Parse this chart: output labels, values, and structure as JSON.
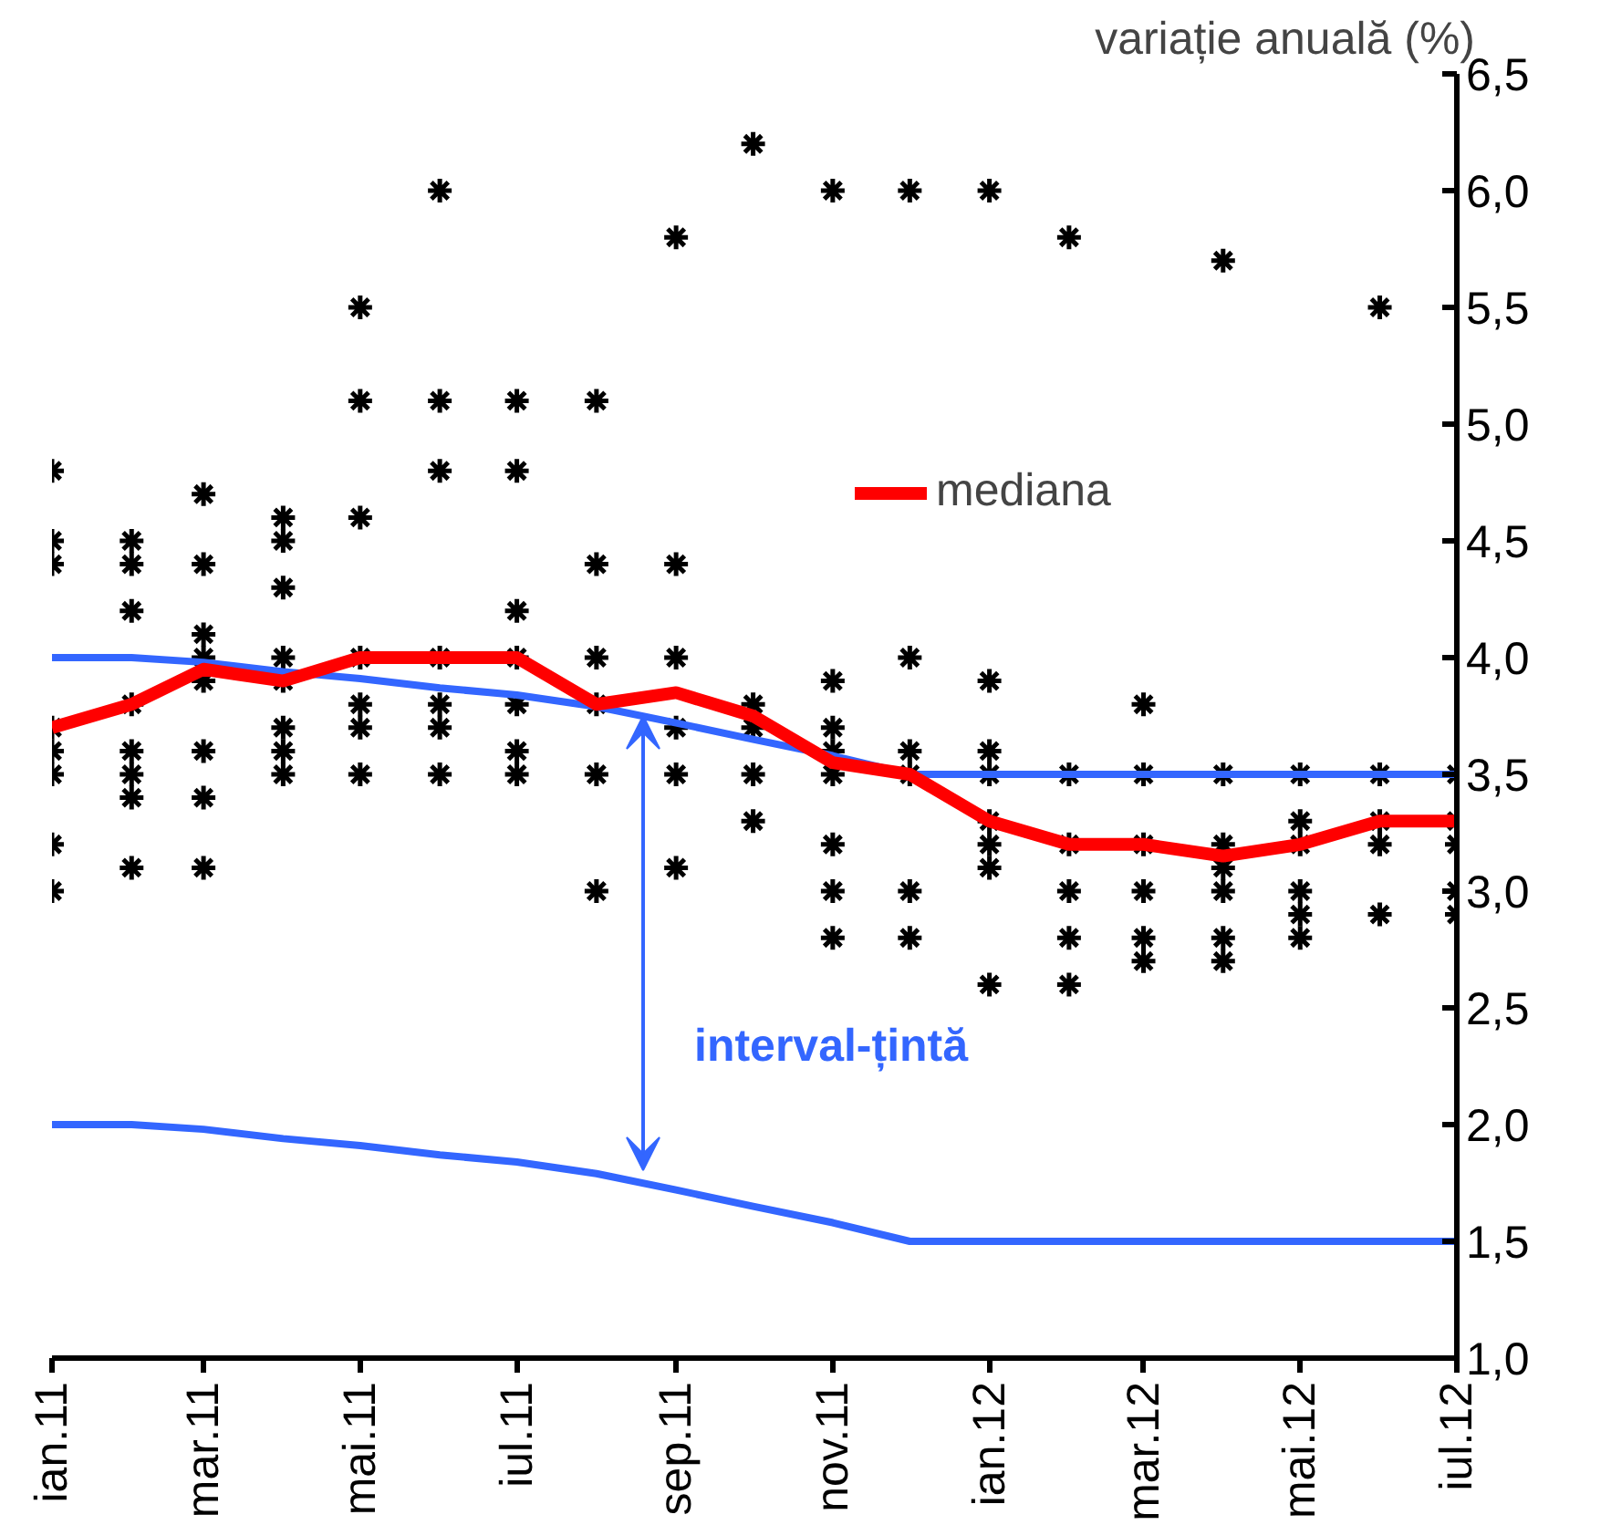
{
  "chart_data": {
    "type": "line",
    "ylabel": "variație anuală (%)",
    "x": [
      "2011-01",
      "2011-02",
      "2011-03",
      "2011-04",
      "2011-05",
      "2011-06",
      "2011-07",
      "2011-08",
      "2011-09",
      "2011-10",
      "2011-11",
      "2011-12",
      "2012-01",
      "2012-02",
      "2012-03",
      "2012-04",
      "2012-05",
      "2012-06",
      "2012-07"
    ],
    "xlim": [
      "2011-01",
      "2012-07"
    ],
    "xticks": [
      {
        "value": "2011-01",
        "label": "ian.11"
      },
      {
        "value": "2011-03",
        "label": "mar.11"
      },
      {
        "value": "2011-05",
        "label": "mai.11"
      },
      {
        "value": "2011-07",
        "label": "iul.11"
      },
      {
        "value": "2011-09",
        "label": "sep.11"
      },
      {
        "value": "2011-11",
        "label": "nov.11"
      },
      {
        "value": "2012-01",
        "label": "ian.12"
      },
      {
        "value": "2012-03",
        "label": "mar.12"
      },
      {
        "value": "2012-05",
        "label": "mai.12"
      },
      {
        "value": "2012-07",
        "label": "iul.12"
      }
    ],
    "ylim": [
      1.0,
      6.5
    ],
    "yticks": [
      {
        "value": 1.0,
        "label": "1,0"
      },
      {
        "value": 1.5,
        "label": "1,5"
      },
      {
        "value": 2.0,
        "label": "2,0"
      },
      {
        "value": 2.5,
        "label": "2,5"
      },
      {
        "value": 3.0,
        "label": "3,0"
      },
      {
        "value": 3.5,
        "label": "3,5"
      },
      {
        "value": 4.0,
        "label": "4,0"
      },
      {
        "value": 4.5,
        "label": "4,5"
      },
      {
        "value": 5.0,
        "label": "5,0"
      },
      {
        "value": 5.5,
        "label": "5,5"
      },
      {
        "value": 6.0,
        "label": "6,0"
      },
      {
        "value": 6.5,
        "label": "6,5"
      }
    ],
    "series": [
      {
        "type": "scatter",
        "color": "#000000",
        "marker": "cross",
        "x": [
          "2011-01",
          "2011-01",
          "2011-01",
          "2011-01",
          "2011-01",
          "2011-01",
          "2011-01",
          "2011-01",
          "2011-02",
          "2011-02",
          "2011-02",
          "2011-02",
          "2011-02",
          "2011-02",
          "2011-02",
          "2011-02",
          "2011-03",
          "2011-03",
          "2011-03",
          "2011-03",
          "2011-03",
          "2011-03",
          "2011-03",
          "2011-03",
          "2011-04",
          "2011-04",
          "2011-04",
          "2011-04",
          "2011-04",
          "2011-04",
          "2011-04",
          "2011-04",
          "2011-05",
          "2011-05",
          "2011-05",
          "2011-05",
          "2011-05",
          "2011-05",
          "2011-05",
          "2011-06",
          "2011-06",
          "2011-06",
          "2011-06",
          "2011-06",
          "2011-06",
          "2011-06",
          "2011-07",
          "2011-07",
          "2011-07",
          "2011-07",
          "2011-07",
          "2011-07",
          "2011-07",
          "2011-08",
          "2011-08",
          "2011-08",
          "2011-08",
          "2011-08",
          "2011-08",
          "2011-09",
          "2011-09",
          "2011-09",
          "2011-09",
          "2011-09",
          "2011-09",
          "2011-10",
          "2011-10",
          "2011-10",
          "2011-10",
          "2011-10",
          "2011-11",
          "2011-11",
          "2011-11",
          "2011-11",
          "2011-11",
          "2011-11",
          "2011-11",
          "2011-11",
          "2011-12",
          "2011-12",
          "2011-12",
          "2011-12",
          "2011-12",
          "2011-12",
          "2012-01",
          "2012-01",
          "2012-01",
          "2012-01",
          "2012-01",
          "2012-01",
          "2012-01",
          "2012-01",
          "2012-02",
          "2012-02",
          "2012-02",
          "2012-02",
          "2012-02",
          "2012-02",
          "2012-03",
          "2012-03",
          "2012-03",
          "2012-03",
          "2012-03",
          "2012-03",
          "2012-04",
          "2012-04",
          "2012-04",
          "2012-04",
          "2012-04",
          "2012-04",
          "2012-04",
          "2012-05",
          "2012-05",
          "2012-05",
          "2012-05",
          "2012-05",
          "2012-05",
          "2012-06",
          "2012-06",
          "2012-06",
          "2012-06",
          "2012-06",
          "2012-07",
          "2012-07",
          "2012-07",
          "2012-07",
          "2012-07"
        ],
        "values": [
          4.8,
          4.5,
          4.4,
          3.7,
          3.6,
          3.5,
          3.2,
          3.0,
          4.5,
          4.4,
          4.2,
          3.8,
          3.6,
          3.5,
          3.4,
          3.1,
          4.7,
          4.4,
          4.1,
          4.0,
          3.9,
          3.6,
          3.4,
          3.1,
          4.6,
          4.5,
          4.3,
          4.0,
          3.9,
          3.7,
          3.6,
          3.5,
          5.5,
          5.1,
          4.6,
          4.0,
          3.8,
          3.7,
          3.5,
          6.0,
          5.1,
          4.8,
          4.0,
          3.8,
          3.7,
          3.5,
          5.1,
          4.8,
          4.2,
          4.0,
          3.8,
          3.6,
          3.5,
          5.1,
          4.4,
          4.0,
          3.8,
          3.5,
          3.0,
          5.8,
          4.4,
          4.0,
          3.7,
          3.5,
          3.1,
          6.2,
          3.8,
          3.7,
          3.5,
          3.3,
          6.0,
          3.9,
          3.7,
          3.6,
          3.5,
          3.2,
          3.0,
          2.8,
          6.0,
          4.0,
          3.6,
          3.5,
          3.0,
          2.8,
          6.0,
          3.9,
          3.6,
          3.5,
          3.3,
          3.2,
          3.1,
          2.6,
          5.8,
          3.5,
          3.2,
          3.0,
          2.8,
          2.6,
          3.8,
          3.5,
          3.2,
          3.0,
          2.8,
          2.7,
          5.7,
          3.5,
          3.2,
          3.1,
          3.0,
          2.8,
          2.7,
          3.5,
          3.3,
          3.2,
          3.0,
          2.9,
          2.8,
          5.5,
          3.5,
          3.3,
          3.2,
          2.9,
          3.5,
          3.3,
          3.2,
          3.0,
          2.9
        ]
      },
      {
        "color": "#3366ff",
        "values": [
          4.0,
          4.0,
          3.98,
          3.94,
          3.91,
          3.87,
          3.84,
          3.79,
          3.72,
          3.65,
          3.58,
          3.5,
          3.5,
          3.5,
          3.5,
          3.5,
          3.5,
          3.5,
          3.5
        ]
      },
      {
        "color": "#3366ff",
        "values": [
          2.0,
          2.0,
          1.98,
          1.94,
          1.91,
          1.87,
          1.84,
          1.79,
          1.72,
          1.65,
          1.58,
          1.5,
          1.5,
          1.5,
          1.5,
          1.5,
          1.5,
          1.5,
          1.5
        ]
      },
      {
        "name": "mediana",
        "color": "#ff0000",
        "values": [
          3.7,
          3.8,
          3.95,
          3.9,
          4.0,
          4.0,
          4.0,
          3.8,
          3.85,
          3.75,
          3.55,
          3.5,
          3.3,
          3.2,
          3.2,
          3.15,
          3.2,
          3.3,
          3.3
        ]
      }
    ],
    "annotations": [
      "interval-țintă"
    ],
    "legend": "top"
  }
}
